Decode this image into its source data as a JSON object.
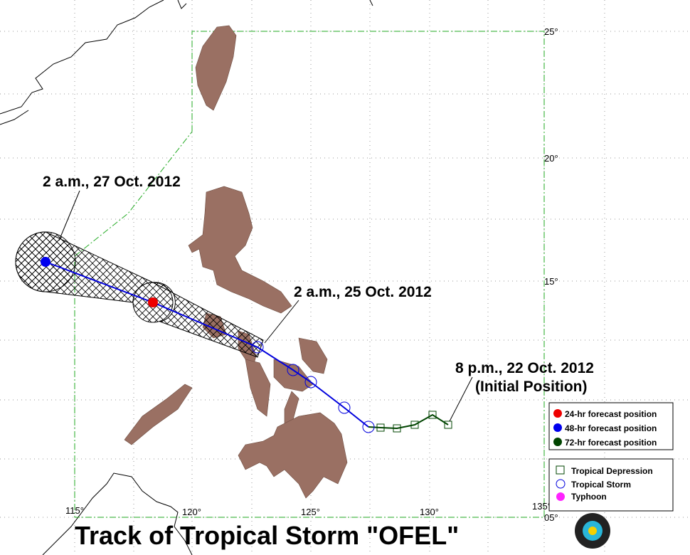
{
  "map": {
    "title": "Track of Tropical Storm \"OFEL\"",
    "lat_labels": [
      "25°",
      "20°",
      "15°",
      "05°"
    ],
    "lon_labels": [
      "115°",
      "120°",
      "125°",
      "130°",
      "135°"
    ],
    "annotations": [
      "2 a.m., 27 Oct. 2012",
      "2 a.m., 25 Oct. 2012",
      "8 p.m., 22 Oct. 2012",
      "(Initial Position)"
    ],
    "forecast_legend": [
      "24-hr forecast position",
      "48-hr forecast position",
      "72-hr forecast position"
    ],
    "intensity_legend": [
      "Tropical Depression",
      "Tropical Storm",
      "Typhoon"
    ]
  }
}
